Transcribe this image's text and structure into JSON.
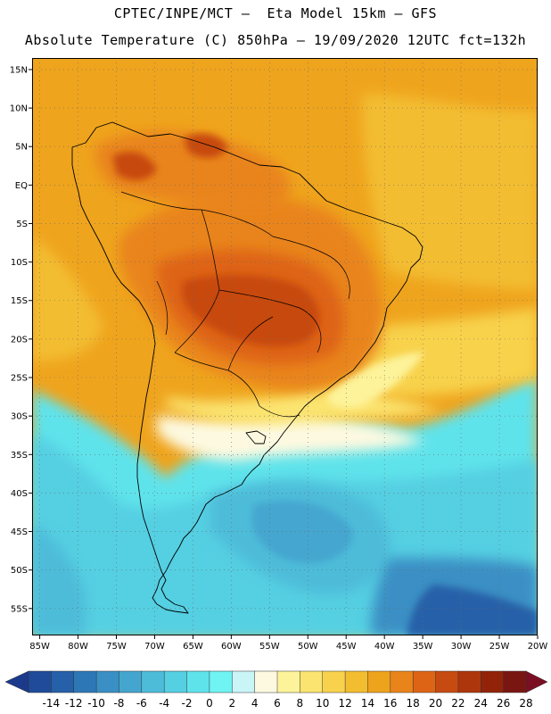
{
  "header": {
    "line1": "CPTEC/INPE/MCT –  Eta Model 15km – GFS",
    "line2": "Absolute Temperature (C) 850hPa – 19/09/2020 12UTC fct=132h"
  },
  "map": {
    "lat_labels": [
      "15N",
      "10N",
      "5N",
      "EQ",
      "5S",
      "10S",
      "15S",
      "20S",
      "25S",
      "30S",
      "35S",
      "40S",
      "45S",
      "50S",
      "55S"
    ],
    "lon_labels": [
      "85W",
      "80W",
      "75W",
      "70W",
      "65W",
      "60W",
      "55W",
      "50W",
      "45W",
      "40W",
      "35W",
      "30W",
      "25W",
      "20W"
    ],
    "lat_values": [
      15,
      10,
      5,
      0,
      -5,
      -10,
      -15,
      -20,
      -25,
      -30,
      -35,
      -40,
      -45,
      -50,
      -55
    ],
    "lon_values": [
      -85,
      -80,
      -75,
      -70,
      -65,
      -60,
      -55,
      -50,
      -45,
      -40,
      -35,
      -30,
      -25,
      -20
    ],
    "lat_range": [
      -58.5,
      16.5
    ],
    "lon_range": [
      -86,
      -20
    ],
    "grid": "dotted"
  },
  "colorbar": {
    "labels": [
      "-14",
      "-12",
      "-10",
      "-8",
      "-6",
      "-4",
      "-2",
      "0",
      "2",
      "4",
      "6",
      "8",
      "10",
      "12",
      "14",
      "16",
      "18",
      "20",
      "22",
      "24",
      "26",
      "28"
    ],
    "under_color": "#1b3a8c",
    "over_color": "#7a0f24",
    "colors": [
      "#1f4b9a",
      "#2660a8",
      "#2d77b7",
      "#3a8fc4",
      "#44a6cf",
      "#4dbcd9",
      "#55cfe2",
      "#5fe3eb",
      "#6ff3f3",
      "#c9f5f7",
      "#fdf9e0",
      "#fdf39a",
      "#fbe470",
      "#f8d24c",
      "#f3bd30",
      "#eea31c",
      "#e9841a",
      "#de6415",
      "#c74a10",
      "#ae360c",
      "#922309",
      "#7a1612"
    ]
  }
}
